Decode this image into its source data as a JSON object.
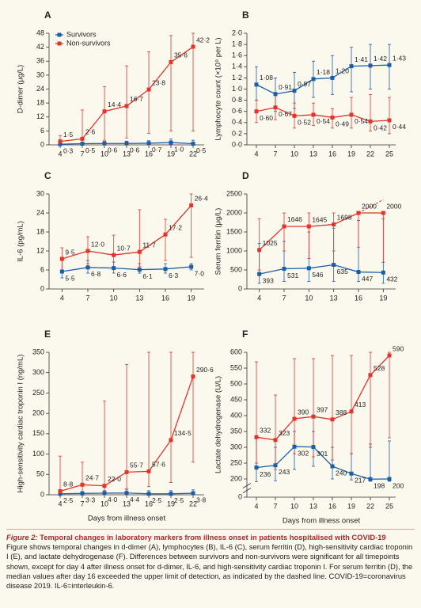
{
  "chart_data": [
    {
      "type": "line",
      "panel_label": "A",
      "ylabel": "D-dimer (μg/L)",
      "legend": "upper left",
      "x": [
        4,
        7,
        10,
        13,
        16,
        19,
        22
      ],
      "xlim": [
        2.5,
        23.5
      ],
      "xticks": [
        4,
        7,
        10,
        13,
        16,
        19,
        22
      ],
      "ylim": [
        0,
        48
      ],
      "yticks": [
        0,
        6,
        12,
        18,
        24,
        30,
        36,
        42,
        48
      ],
      "series": [
        {
          "name": "Survivors",
          "color": "#1a5ea8",
          "values": [
            0.3,
            0.5,
            0.6,
            0.6,
            0.7,
            1.0,
            0.5
          ],
          "value_labels": [
            "0·3",
            "0·5",
            "0·6",
            "0·6",
            "0·7",
            "1·0",
            "0·5"
          ],
          "lower": [
            0.1,
            0.2,
            0.3,
            0.3,
            0.3,
            0.4,
            0.3
          ],
          "upper": [
            0.8,
            1.2,
            1.5,
            1.6,
            1.8,
            2.5,
            2.0
          ]
        },
        {
          "name": "Non-survivors",
          "color": "#e2342b",
          "values": [
            1.5,
            2.6,
            14.4,
            16.7,
            23.8,
            35.6,
            42.2
          ],
          "value_labels": [
            "1·5",
            "2·6",
            "14·4",
            "16·7",
            "23·8",
            "35·6",
            "42·2"
          ],
          "lower": [
            0.5,
            0.8,
            2,
            3,
            5,
            6,
            6
          ],
          "upper": [
            4,
            15,
            25,
            34,
            40,
            47,
            48
          ]
        }
      ]
    },
    {
      "type": "line",
      "panel_label": "B",
      "ylabel": "Lymphocyte count (×10⁹ per L)",
      "x": [
        4,
        7,
        10,
        13,
        16,
        19,
        22,
        25
      ],
      "xlim": [
        2.5,
        26
      ],
      "xticks": [
        4,
        7,
        10,
        13,
        16,
        19,
        22,
        25
      ],
      "ylim": [
        0,
        2
      ],
      "yticks": [
        {
          "value": 0,
          "label": "0·0"
        },
        {
          "value": 0.2,
          "label": "0·2"
        },
        {
          "value": 0.4,
          "label": "0·4"
        },
        {
          "value": 0.6,
          "label": "0·6"
        },
        {
          "value": 0.8,
          "label": "0·8"
        },
        {
          "value": 1,
          "label": "1·0"
        },
        {
          "value": 1.2,
          "label": "1·2"
        },
        {
          "value": 1.4,
          "label": "1·4"
        },
        {
          "value": 1.6,
          "label": "1·6"
        },
        {
          "value": 1.8,
          "label": "1·8"
        },
        {
          "value": 2,
          "label": "2·0"
        }
      ],
      "series": [
        {
          "color": "#1a5ea8",
          "values": [
            1.08,
            0.91,
            0.97,
            1.18,
            1.2,
            1.41,
            1.42,
            1.43
          ],
          "value_labels": [
            "1·08",
            "0·91",
            "0·97",
            "1·18",
            "1·20",
            "1·41",
            "1·42",
            "1·43"
          ],
          "lower": [
            0.8,
            0.6,
            0.65,
            0.85,
            0.9,
            0.95,
            1.0,
            1.0
          ],
          "upper": [
            1.4,
            1.2,
            1.3,
            1.5,
            1.6,
            1.75,
            1.8,
            1.8
          ]
        },
        {
          "color": "#e2342b",
          "values": [
            0.6,
            0.67,
            0.52,
            0.54,
            0.49,
            0.54,
            0.42,
            0.44
          ],
          "value_labels": [
            "0·60",
            "0·67",
            "0·52",
            "0·54",
            "0·49",
            "0·54",
            "0·42",
            "0·44"
          ],
          "lower": [
            0.4,
            0.45,
            0.3,
            0.35,
            0.3,
            0.3,
            0.25,
            0.2
          ],
          "upper": [
            0.8,
            0.9,
            0.75,
            0.75,
            0.65,
            0.85,
            0.9,
            0.85
          ]
        }
      ]
    },
    {
      "type": "line",
      "panel_label": "C",
      "ylabel": "IL-6 (pg/mL)",
      "x": [
        4,
        7,
        10,
        13,
        16,
        19
      ],
      "xlim": [
        2.5,
        20.5
      ],
      "xticks": [
        4,
        7,
        10,
        13,
        16,
        19
      ],
      "ylim": [
        0,
        30
      ],
      "yticks": [
        0,
        6,
        12,
        18,
        24,
        30
      ],
      "series": [
        {
          "color": "#1a5ea8",
          "values": [
            5.5,
            6.8,
            6.6,
            6.1,
            6.3,
            7.0
          ],
          "value_labels": [
            "5·5",
            "6·8",
            "6·6",
            "6·1",
            "6·3",
            "7·0"
          ],
          "lower": [
            3.5,
            5,
            5,
            5,
            5,
            6
          ],
          "upper": [
            9,
            9,
            8.5,
            8,
            8,
            8
          ]
        },
        {
          "color": "#e2342b",
          "values": [
            9.5,
            12.0,
            10.7,
            11.7,
            17.2,
            26.4
          ],
          "value_labels": [
            "9·5",
            "12·0",
            "10·7",
            "11·7",
            "17·2",
            "26·4"
          ],
          "lower": [
            6,
            8,
            7,
            7,
            9,
            10
          ],
          "upper": [
            13,
            16.5,
            17,
            25,
            22,
            30
          ]
        }
      ]
    },
    {
      "type": "line",
      "panel_label": "D",
      "ylabel": "Serum ferritin (μg/L)",
      "x": [
        4,
        7,
        10,
        13,
        16,
        19
      ],
      "xlim": [
        2.5,
        20.5
      ],
      "xticks": [
        4,
        7,
        10,
        13,
        16,
        19
      ],
      "ylim": [
        0,
        2500
      ],
      "yticks": [
        0,
        500,
        1000,
        1500,
        2000,
        2500
      ],
      "series": [
        {
          "color": "#1a5ea8",
          "values": [
            393,
            531,
            546,
            635,
            447,
            432
          ],
          "lower": [
            150,
            200,
            200,
            200,
            200,
            150
          ],
          "upper": [
            1200,
            1250,
            1500,
            1600,
            1800,
            1850
          ]
        },
        {
          "color": "#e2342b",
          "values": [
            1025,
            1646,
            1645,
            1698,
            2000,
            2000
          ],
          "lower": [
            500,
            1000,
            800,
            1000,
            1100,
            700
          ],
          "upper": [
            1850,
            2000,
            2000,
            2000,
            2000,
            2000
          ]
        }
      ],
      "dashed_extension": {
        "color": "#e2342b",
        "x": [
          16,
          19
        ],
        "values": [
          2000,
          2350
        ]
      }
    },
    {
      "type": "line",
      "panel_label": "E",
      "ylabel": "High-sensitivity cardiac troponin I (ng/mL)",
      "xlabel": "Days from illness onset",
      "x": [
        4,
        7,
        10,
        13,
        16,
        19,
        22
      ],
      "xlim": [
        2.5,
        23.5
      ],
      "xticks": [
        4,
        7,
        10,
        13,
        16,
        19,
        22
      ],
      "ylim": [
        0,
        350
      ],
      "yticks": [
        0,
        50,
        100,
        150,
        200,
        250,
        300,
        350
      ],
      "series": [
        {
          "color": "#1a5ea8",
          "values": [
            2.5,
            3.3,
            4.0,
            4.4,
            2.5,
            2.5,
            3.8
          ],
          "value_labels": [
            "2·5",
            "3·3",
            "4·0",
            "4·4",
            "2·5",
            "2·5",
            "3·8"
          ],
          "lower": [
            1,
            1,
            1.5,
            1.5,
            1,
            1,
            1.5
          ],
          "upper": [
            8,
            8,
            10,
            12,
            10,
            10,
            12
          ]
        },
        {
          "color": "#e2342b",
          "values": [
            8.8,
            24.7,
            22.0,
            55.7,
            57.6,
            134.5,
            290.6
          ],
          "value_labels": [
            "8·8",
            "24·7",
            "22·0",
            "55·7",
            "57·6",
            "134·5",
            "290·6"
          ],
          "lower": [
            2,
            5,
            8,
            15,
            20,
            30,
            80
          ],
          "upper": [
            95,
            80,
            230,
            320,
            350,
            350,
            350
          ]
        }
      ]
    },
    {
      "type": "line",
      "panel_label": "F",
      "ylabel": "Lactate dehydrogenase (U/L)",
      "xlabel": "Days from illness onset",
      "x": [
        4,
        7,
        10,
        13,
        16,
        19,
        22,
        25
      ],
      "xlim": [
        2.5,
        26
      ],
      "xticks": [
        4,
        7,
        10,
        13,
        16,
        19,
        22,
        25
      ],
      "ylim": [
        0,
        600
      ],
      "axis_break": [
        0,
        200
      ],
      "yticks": [
        0,
        200,
        250,
        300,
        350,
        400,
        450,
        500,
        550,
        600
      ],
      "series": [
        {
          "color": "#1a5ea8",
          "values": [
            236,
            243,
            302,
            301,
            240,
            217,
            198,
            200
          ],
          "lower": [
            170,
            180,
            230,
            240,
            200,
            190,
            175,
            175
          ],
          "upper": [
            330,
            300,
            350,
            350,
            300,
            280,
            310,
            320
          ]
        },
        {
          "color": "#e2342b",
          "values": [
            332,
            323,
            390,
            397,
            388,
            413,
            528,
            590
          ],
          "lower": [
            250,
            230,
            280,
            270,
            260,
            280,
            300,
            330
          ],
          "upper": [
            570,
            465,
            580,
            580,
            590,
            590,
            600,
            600
          ]
        }
      ]
    }
  ],
  "caption": {
    "label": "Figure 2:",
    "title": "Temporal changes in laboratory markers from illness onset in patients hospitalised with COVID-19",
    "text": "Figure shows temporal changes in d-dimer (A), lymphocytes (B), IL-6 (C), serum ferritin (D), high-sensitivity cardiac troponin I (E), and lactate dehydrogenase (F). Differences between survivors and non-survivors were significant for all timepoints shown, except for day 4 after illness onset for d-dimer, IL-6, and high-sensitivity cardiac troponin I. For serum ferritin (D), the median values after day 16 exceeded the upper limit of detection, as indicated by the dashed line. COVID-19=coronavirus disease 2019. IL-6=interleukin-6."
  }
}
